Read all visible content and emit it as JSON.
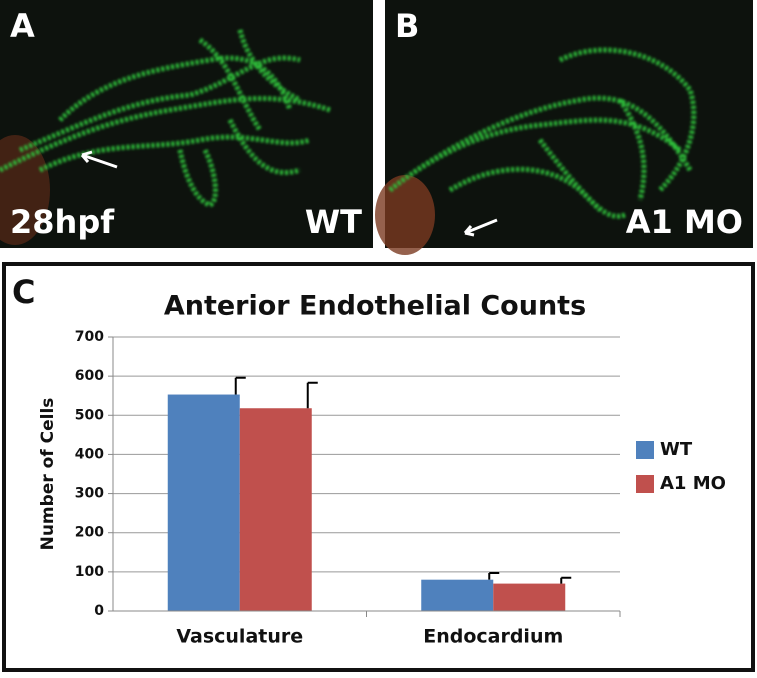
{
  "panels": [
    {
      "letter": "A",
      "stage": "28hpf",
      "condition": "WT"
    },
    {
      "letter": "B",
      "condition": "A1 MO"
    }
  ],
  "chart_data": {
    "type": "bar",
    "panel_label": "C",
    "title": "Anterior Endothelial Counts",
    "y_label": "Number of Cells",
    "categories": [
      "Vasculature",
      "Endocardium"
    ],
    "series": [
      {
        "name": "WT",
        "color": "#4f81bd",
        "values": [
          553,
          80
        ],
        "errors": [
          43,
          17
        ]
      },
      {
        "name": "A1 MO",
        "color": "#c0504d",
        "values": [
          518,
          70
        ],
        "errors": [
          65,
          15
        ]
      }
    ],
    "ylim": [
      0,
      700
    ],
    "yticks": [
      0,
      100,
      200,
      300,
      400,
      500,
      600,
      700
    ],
    "grid": true,
    "legend": "right"
  }
}
